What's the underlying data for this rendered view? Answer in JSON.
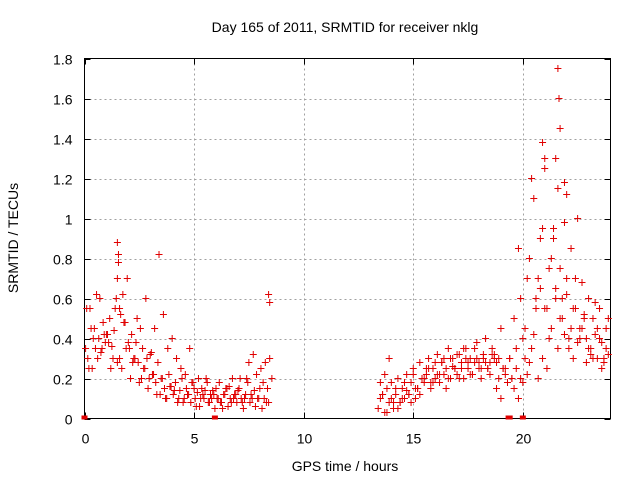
{
  "chart_data": {
    "type": "scatter",
    "title": "Day 165 of 2011, SRMTID for receiver nklg",
    "xlabel": "GPS time / hours",
    "ylabel": "SRMTID / TECUs",
    "xlim": [
      0,
      24
    ],
    "ylim": [
      0,
      1.8
    ],
    "xticks": [
      0,
      5,
      10,
      15,
      20
    ],
    "xtick_labels": [
      "0",
      "5",
      "10",
      "15",
      "20"
    ],
    "yticks": [
      0,
      0.2,
      0.4,
      0.6,
      0.8,
      1.0,
      1.2,
      1.4,
      1.6,
      1.8
    ],
    "ytick_labels": [
      "0",
      "0.2",
      "0.4",
      "0.6",
      "0.8",
      "1",
      "1.2",
      "1.4",
      "1.6",
      "1.8"
    ],
    "grid": true,
    "marker": "plus",
    "color": "#e00000",
    "series": [
      {
        "name": "SRMTID",
        "x": [
          0.05,
          0.15,
          0.25,
          0.35,
          0.45,
          0.55,
          0.65,
          0.75,
          0.85,
          0.95,
          1.05,
          1.15,
          1.25,
          1.35,
          1.45,
          1.5,
          1.55,
          1.6,
          1.65,
          1.75,
          1.85,
          1.95,
          2.05,
          2.15,
          2.25,
          2.35,
          2.45,
          2.55,
          2.65,
          2.75,
          2.85,
          2.95,
          3.05,
          3.15,
          3.25,
          3.35,
          3.45,
          3.55,
          3.65,
          3.75,
          3.85,
          3.95,
          4.05,
          4.15,
          4.25,
          4.35,
          4.45,
          4.55,
          4.65,
          4.75,
          4.85,
          4.95,
          5.05,
          5.15,
          5.25,
          5.35,
          5.45,
          5.55,
          5.65,
          5.75,
          5.85,
          5.95,
          6.05,
          6.15,
          6.25,
          6.35,
          6.45,
          6.55,
          6.65,
          6.75,
          6.85,
          6.95,
          7.05,
          7.15,
          7.25,
          7.35,
          7.45,
          7.55,
          7.65,
          7.75,
          7.85,
          7.95,
          8.05,
          8.15,
          8.25,
          8.35,
          8.45,
          8.55,
          13.4,
          13.5,
          13.6,
          13.7,
          13.8,
          13.9,
          14.0,
          14.1,
          14.2,
          14.3,
          14.4,
          14.5,
          14.6,
          14.7,
          14.8,
          14.9,
          15.0,
          15.1,
          15.2,
          15.3,
          15.4,
          15.5,
          15.6,
          15.7,
          15.8,
          15.9,
          16.0,
          16.1,
          16.2,
          16.3,
          16.4,
          16.5,
          16.6,
          16.7,
          16.8,
          16.9,
          17.0,
          17.1,
          17.2,
          17.3,
          17.4,
          17.5,
          17.6,
          17.7,
          17.8,
          17.9,
          18.0,
          18.1,
          18.2,
          18.3,
          18.4,
          18.5,
          18.6,
          18.7,
          18.8,
          18.9,
          19.0,
          19.1,
          19.2,
          19.3,
          19.4,
          19.5,
          19.6,
          19.7,
          19.8,
          19.9,
          20.0,
          20.1,
          20.2,
          20.3,
          20.4,
          20.5,
          20.6,
          20.7,
          20.8,
          20.9,
          21.0,
          21.1,
          21.2,
          21.3,
          21.4,
          21.5,
          21.6,
          21.7,
          21.8,
          21.9,
          22.0,
          22.1,
          22.2,
          22.3,
          22.4,
          22.5,
          22.6,
          22.7,
          22.8,
          22.9,
          23.0,
          23.1,
          23.2,
          23.3,
          23.4,
          23.5,
          23.6,
          23.7,
          23.8,
          23.9,
          0.2,
          0.4,
          0.6,
          0.8,
          1.0,
          1.2,
          1.4,
          1.6,
          1.8,
          2.0,
          2.2,
          2.4,
          2.6,
          2.8,
          3.0,
          3.2,
          3.4,
          3.6,
          3.8,
          4.0,
          4.2,
          4.4,
          4.6,
          4.8,
          5.0,
          5.2,
          5.4,
          5.6,
          5.8,
          6.0,
          6.2,
          6.4,
          6.6,
          6.8,
          7.0,
          7.2,
          7.4,
          7.6,
          7.8,
          8.0,
          8.2,
          8.4,
          13.5,
          13.7,
          13.9,
          14.1,
          14.3,
          14.5,
          14.7,
          14.9,
          15.1,
          15.3,
          15.5,
          15.7,
          15.9,
          16.1,
          16.3,
          16.5,
          16.7,
          16.9,
          17.1,
          17.3,
          17.5,
          17.7,
          17.9,
          18.1,
          18.3,
          18.5,
          18.7,
          18.9,
          19.1,
          19.3,
          19.5,
          19.7,
          19.9,
          20.1,
          20.3,
          20.5,
          20.7,
          20.9,
          21.1,
          21.3,
          21.5,
          21.7,
          21.9,
          22.1,
          22.3,
          22.5,
          22.7,
          22.9,
          23.1,
          23.3,
          23.5,
          23.7,
          23.9,
          0.1,
          0.3,
          0.5,
          0.7,
          0.9,
          1.1,
          1.3,
          1.5,
          1.7,
          1.9,
          2.1,
          2.3,
          2.5,
          2.7,
          2.9,
          3.1,
          3.3,
          3.5,
          3.7,
          3.9,
          4.1,
          4.3,
          4.5,
          4.7,
          4.9,
          5.1,
          5.3,
          5.5,
          5.7,
          5.9,
          6.1,
          6.3,
          6.5,
          6.7,
          6.9,
          7.1,
          7.3,
          7.5,
          7.7,
          7.9,
          8.1,
          8.3,
          13.6,
          13.8,
          14.0,
          14.2,
          14.4,
          14.6,
          14.8,
          15.0,
          15.2,
          15.4,
          15.6,
          15.8,
          16.0,
          16.2,
          16.4,
          16.6,
          16.8,
          17.0,
          17.2,
          17.4,
          17.6,
          17.8,
          18.0,
          18.2,
          18.4,
          18.6,
          18.8,
          19.0,
          19.2,
          19.4,
          19.6,
          19.8,
          20.0,
          20.2,
          20.4,
          20.6,
          20.8,
          21.0,
          21.2,
          21.4,
          21.6,
          21.8,
          22.0,
          22.2,
          22.4,
          22.6,
          22.8,
          23.0,
          23.2,
          23.4,
          23.6,
          23.8,
          1.5,
          1.55,
          21.6,
          21.65,
          21.5,
          21.7,
          20.9,
          21.0,
          21.9,
          22.0,
          8.4,
          8.45
        ],
        "y": [
          0.35,
          0.3,
          0.55,
          0.25,
          0.45,
          0.62,
          0.4,
          0.33,
          0.48,
          0.38,
          0.42,
          0.5,
          0.36,
          0.44,
          0.6,
          0.7,
          0.78,
          0.55,
          0.52,
          0.62,
          0.48,
          0.7,
          0.35,
          0.42,
          0.3,
          0.38,
          0.28,
          0.45,
          0.35,
          0.25,
          0.3,
          0.2,
          0.33,
          0.22,
          0.18,
          0.28,
          0.12,
          0.2,
          0.15,
          0.1,
          0.22,
          0.16,
          0.12,
          0.18,
          0.08,
          0.14,
          0.2,
          0.1,
          0.15,
          0.12,
          0.08,
          0.18,
          0.1,
          0.13,
          0.06,
          0.15,
          0.1,
          0.2,
          0.08,
          0.12,
          0.14,
          0.05,
          0.1,
          0.18,
          0.08,
          0.12,
          0.15,
          0.06,
          0.1,
          0.2,
          0.12,
          0.08,
          0.15,
          0.1,
          0.05,
          0.12,
          0.18,
          0.08,
          0.1,
          0.14,
          0.22,
          0.1,
          0.25,
          0.18,
          0.28,
          0.15,
          0.3,
          0.2,
          0.05,
          0.1,
          0.12,
          0.03,
          0.15,
          0.08,
          0.18,
          0.05,
          0.12,
          0.2,
          0.08,
          0.15,
          0.1,
          0.22,
          0.12,
          0.18,
          0.25,
          0.1,
          0.15,
          0.28,
          0.2,
          0.18,
          0.22,
          0.3,
          0.15,
          0.25,
          0.2,
          0.32,
          0.18,
          0.28,
          0.22,
          0.25,
          0.35,
          0.2,
          0.3,
          0.25,
          0.22,
          0.32,
          0.28,
          0.2,
          0.35,
          0.25,
          0.3,
          0.22,
          0.28,
          0.38,
          0.25,
          0.2,
          0.32,
          0.28,
          0.25,
          0.22,
          0.35,
          0.3,
          0.28,
          0.2,
          0.45,
          0.25,
          0.22,
          0.18,
          0.3,
          0.2,
          0.15,
          0.25,
          0.1,
          0.2,
          0.18,
          0.3,
          0.22,
          0.28,
          0.35,
          0.42,
          0.55,
          0.2,
          0.65,
          0.3,
          0.55,
          0.25,
          0.4,
          0.45,
          0.9,
          0.6,
          0.35,
          0.75,
          0.5,
          0.98,
          0.62,
          0.4,
          0.85,
          0.55,
          0.7,
          1.0,
          0.45,
          0.68,
          0.52,
          0.4,
          0.6,
          0.35,
          0.5,
          0.42,
          0.3,
          0.55,
          0.38,
          0.28,
          0.45,
          0.32,
          0.25,
          0.4,
          0.3,
          0.35,
          0.42,
          0.25,
          0.55,
          0.3,
          0.48,
          0.38,
          0.28,
          0.5,
          0.2,
          0.6,
          0.32,
          0.45,
          0.82,
          0.52,
          0.35,
          0.4,
          0.3,
          0.25,
          0.22,
          0.35,
          0.15,
          0.2,
          0.12,
          0.18,
          0.1,
          0.15,
          0.08,
          0.12,
          0.16,
          0.1,
          0.14,
          0.08,
          0.2,
          0.12,
          0.06,
          0.15,
          0.1,
          0.08,
          0.18,
          0.22,
          0.3,
          0.08,
          0.05,
          0.1,
          0.14,
          0.08,
          0.15,
          0.12,
          0.2,
          0.25,
          0.18,
          0.22,
          0.28,
          0.15,
          0.3,
          0.25,
          0.2,
          0.35,
          0.28,
          0.22,
          0.3,
          0.25,
          0.4,
          0.28,
          0.32,
          0.3,
          0.25,
          0.18,
          0.2,
          0.35,
          0.6,
          0.45,
          0.8,
          1.1,
          0.7,
          0.95,
          0.55,
          0.8,
          0.65,
          0.5,
          0.42,
          0.35,
          0.3,
          0.38,
          0.45,
          0.28,
          0.32,
          0.58,
          0.4,
          0.3,
          0.5,
          0.55,
          0.45,
          0.35,
          0.6,
          0.42,
          0.38,
          0.3,
          0.28,
          0.25,
          0.35,
          0.2,
          0.3,
          0.18,
          0.25,
          0.15,
          0.22,
          0.12,
          0.2,
          0.1,
          0.16,
          0.14,
          0.1,
          0.08,
          0.12,
          0.18,
          0.06,
          0.1,
          0.14,
          0.08,
          0.12,
          0.1,
          0.05,
          0.15,
          0.08,
          0.12,
          0.2,
          0.1,
          0.28,
          0.32,
          0.1,
          0.05,
          0.08,
          0.12,
          0.03,
          0.1,
          0.15,
          0.08,
          0.18,
          0.12,
          0.22,
          0.15,
          0.2,
          0.25,
          0.18,
          0.28,
          0.22,
          0.3,
          0.2,
          0.26,
          0.32,
          0.25,
          0.3,
          0.22,
          0.35,
          0.28,
          0.3,
          0.25,
          0.32,
          0.15,
          0.1,
          0.25,
          0.3,
          0.5,
          0.85,
          0.4,
          0.7,
          1.2,
          0.6,
          0.9,
          1.3,
          0.75,
          0.95,
          1.15,
          0.6,
          0.7,
          0.45,
          0.55,
          0.4,
          0.5,
          0.35,
          0.3,
          0.45,
          0.25,
          0.35,
          0.88,
          0.82,
          1.75,
          1.6,
          1.3,
          1.45,
          1.38,
          1.25,
          1.18,
          1.12,
          0.62,
          0.58
        ]
      }
    ],
    "data_gaps": [
      [
        0,
        0
      ],
      [
        5.95,
        0
      ],
      [
        19.35,
        0
      ],
      [
        19.4,
        0
      ],
      [
        20.0,
        0
      ]
    ]
  }
}
